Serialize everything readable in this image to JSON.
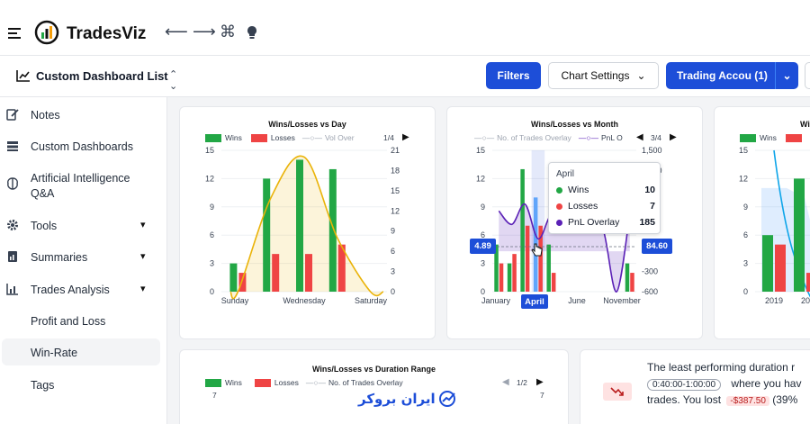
{
  "app": {
    "brand": "TradesViz"
  },
  "subbar": {
    "dashboard_title": "Custom Dashboard List",
    "filters_label": "Filters",
    "chart_settings_label": "Chart Settings",
    "account_label": "Trading Accou (1)"
  },
  "sidebar": {
    "items": [
      {
        "label": "Notes",
        "icon": "notes-icon"
      },
      {
        "label": "Custom Dashboards",
        "icon": "dashboards-icon"
      },
      {
        "label": "Artificial Intelligence Q&A",
        "icon": "brain-icon"
      },
      {
        "label": "Tools",
        "icon": "gear-icon"
      },
      {
        "label": "Summaries",
        "icon": "summary-icon"
      },
      {
        "label": "Trades Analysis",
        "icon": "analysis-icon"
      },
      {
        "label": "Profit and Loss"
      },
      {
        "label": "Win-Rate"
      },
      {
        "label": "Tags"
      }
    ]
  },
  "colors": {
    "wins": "#22a745",
    "losses": "#ef4444",
    "overlay_line": "#eab308",
    "pnl_line": "#5b21b6",
    "accent": "#1d4ed8"
  },
  "cards": {
    "day": {
      "title": "Wins/Losses vs Day",
      "legend": [
        "Wins",
        "Losses",
        "Vol Over"
      ],
      "page": "1/4"
    },
    "month": {
      "title": "Wins/Losses vs Month",
      "legend": [
        "No. of Trades Overlay",
        "PnL O"
      ],
      "page": "3/4",
      "tooltip": {
        "title": "April",
        "rows": [
          {
            "label": "Wins",
            "value": "10"
          },
          {
            "label": "Losses",
            "value": "7"
          },
          {
            "label": "PnL Overlay",
            "value": "185"
          }
        ]
      },
      "crosshair_left": "4.89",
      "crosshair_right": "84.60",
      "highlight_x": "April"
    },
    "third": {
      "title": "Wi",
      "legend": [
        "Wins"
      ]
    },
    "duration": {
      "title": "Wins/Losses vs Duration Range",
      "legend": [
        "Wins",
        "Losses",
        "No. of Trades Overlay"
      ],
      "page": "1/2"
    },
    "insight": {
      "line1": "The least performing duration r",
      "duration_pill": "0:40:00-1:00:00",
      "line2": "where you hav",
      "line3a": "trades. You lost",
      "loss_pill": "-$387.50",
      "line3b": "(39%"
    }
  },
  "watermark": "ایران بروکر",
  "chart_data": [
    {
      "type": "bar",
      "title": "Wins/Losses vs Day",
      "categories": [
        "Sunday",
        "",
        "Wednesday",
        "",
        "Saturday"
      ],
      "tick_labels_x": [
        "Sunday",
        "Wednesday",
        "Saturday"
      ],
      "series": [
        {
          "name": "Wins",
          "values": [
            3,
            12,
            14,
            13,
            0
          ]
        },
        {
          "name": "Losses",
          "values": [
            2,
            4,
            4,
            5,
            0
          ]
        },
        {
          "name": "Vol Over",
          "values": [
            0,
            14,
            20,
            8,
            0
          ]
        }
      ],
      "y_left_ticks": [
        "0",
        "3",
        "6",
        "9",
        "12",
        "15"
      ],
      "y_right_ticks": [
        "0",
        "3",
        "6",
        "9",
        "12",
        "15",
        "18",
        "21"
      ],
      "ylim": [
        0,
        15
      ],
      "ylim_right": [
        0,
        21
      ]
    },
    {
      "type": "bar",
      "title": "Wins/Losses vs Month",
      "tick_labels_x": [
        "January",
        "April",
        "June",
        "November"
      ],
      "series": [
        {
          "name": "Wins",
          "values": [
            5,
            3,
            13,
            10,
            5,
            0,
            0,
            0,
            0,
            0,
            3
          ]
        },
        {
          "name": "Losses",
          "values": [
            3,
            4,
            7,
            7,
            2,
            0,
            0,
            0,
            0,
            0,
            2
          ]
        },
        {
          "name": "PnL O",
          "values": [
            600,
            400,
            700,
            185,
            550,
            500,
            500,
            500,
            300,
            -600,
            550
          ]
        }
      ],
      "y_left_ticks": [
        "0",
        "3",
        "6",
        "9",
        "12",
        "15"
      ],
      "y_right_ticks": [
        "-600",
        "-300",
        "0",
        "300",
        "600",
        "900",
        "1,200",
        "1,500"
      ],
      "ylim": [
        0,
        15
      ],
      "ylim_right": [
        -600,
        1500
      ]
    },
    {
      "type": "bar",
      "title": "Wi",
      "tick_labels_x": [
        "2019",
        "20"
      ],
      "series": [
        {
          "name": "Wins",
          "values": [
            6,
            12
          ]
        },
        {
          "name": "Losses",
          "values": [
            5,
            2
          ]
        }
      ],
      "y_left_ticks": [
        "0",
        "3",
        "6",
        "9",
        "12",
        "15"
      ],
      "ylim": [
        0,
        15
      ]
    },
    {
      "type": "bar",
      "title": "Wins/Losses vs Duration Range",
      "y_left_ticks": [
        "7"
      ],
      "y_right_ticks": [
        "7"
      ]
    }
  ]
}
